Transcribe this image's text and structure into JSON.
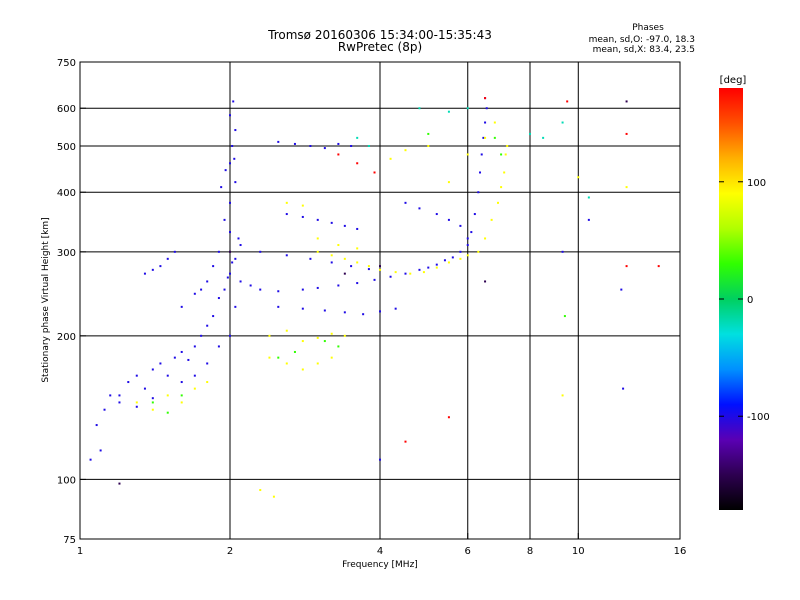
{
  "chart_data": {
    "type": "scatter",
    "title_line1": "Tromsø 20160306 15:34:00-15:35:43",
    "title_line2": "RwPretec (8p)",
    "xlabel": "Frequency [MHz]",
    "ylabel": "Stationary phase Virtual Height [km]",
    "x_scale": "log",
    "y_scale": "log",
    "xlim": [
      1,
      16
    ],
    "ylim": [
      75,
      750
    ],
    "x_ticks": [
      1,
      2,
      4,
      6,
      8,
      10,
      16
    ],
    "x_grid_lines": [
      2,
      4,
      6,
      8,
      10
    ],
    "y_ticks": [
      75,
      100,
      200,
      300,
      400,
      500,
      600,
      750
    ],
    "y_grid_lines": [
      100,
      200,
      300,
      400,
      500,
      600
    ],
    "grid": true,
    "stats": {
      "heading": "Phases",
      "line_o": "mean, sd,O: -97.0, 18.3",
      "line_x": "mean, sd,X:  83.4, 23.5"
    },
    "colorbar": {
      "label": "[deg]",
      "range": [
        -180,
        180
      ],
      "ticks": [
        100,
        0,
        -100
      ],
      "colors": [
        "#000000",
        "#2d0050",
        "#5a00b4",
        "#0010ff",
        "#0090ff",
        "#00e0e0",
        "#00d060",
        "#30ff00",
        "#b0ff00",
        "#ffff00",
        "#ffb000",
        "#ff5000",
        "#ff0000"
      ]
    },
    "series": [
      {
        "phase": -100,
        "points": [
          [
            1.05,
            110
          ],
          [
            1.1,
            115
          ],
          [
            1.08,
            130
          ],
          [
            1.12,
            140
          ],
          [
            1.15,
            150
          ],
          [
            1.2,
            145
          ],
          [
            1.25,
            160
          ],
          [
            1.3,
            165
          ],
          [
            1.35,
            155
          ],
          [
            1.4,
            170
          ],
          [
            1.45,
            175
          ],
          [
            1.5,
            165
          ],
          [
            1.55,
            180
          ],
          [
            1.6,
            185
          ],
          [
            1.65,
            178
          ],
          [
            1.7,
            190
          ],
          [
            1.75,
            200
          ],
          [
            1.8,
            210
          ],
          [
            1.85,
            220
          ],
          [
            1.9,
            240
          ],
          [
            1.95,
            250
          ],
          [
            2.0,
            270
          ],
          [
            2.05,
            290
          ],
          [
            2.1,
            310
          ],
          [
            2.0,
            330
          ],
          [
            1.95,
            350
          ],
          [
            2.0,
            380
          ],
          [
            2.05,
            420
          ],
          [
            2.0,
            460
          ],
          [
            2.02,
            500
          ],
          [
            2.05,
            540
          ],
          [
            2.0,
            580
          ],
          [
            2.03,
            620
          ],
          [
            1.9,
            300
          ],
          [
            1.85,
            280
          ],
          [
            1.8,
            260
          ],
          [
            1.75,
            250
          ],
          [
            1.7,
            245
          ],
          [
            1.6,
            230
          ],
          [
            1.55,
            300
          ],
          [
            1.5,
            290
          ],
          [
            1.45,
            280
          ],
          [
            1.4,
            275
          ],
          [
            1.35,
            270
          ],
          [
            2.1,
            260
          ],
          [
            2.2,
            255
          ],
          [
            2.3,
            250
          ],
          [
            2.5,
            248
          ],
          [
            2.8,
            250
          ],
          [
            3.0,
            252
          ],
          [
            3.3,
            255
          ],
          [
            3.6,
            258
          ],
          [
            3.9,
            262
          ],
          [
            4.2,
            266
          ],
          [
            4.5,
            270
          ],
          [
            4.8,
            275
          ],
          [
            5.0,
            278
          ],
          [
            5.2,
            282
          ],
          [
            5.4,
            288
          ],
          [
            5.6,
            292
          ],
          [
            5.8,
            300
          ],
          [
            6.0,
            310
          ],
          [
            6.1,
            330
          ],
          [
            6.2,
            360
          ],
          [
            6.3,
            400
          ],
          [
            6.35,
            440
          ],
          [
            6.4,
            480
          ],
          [
            6.45,
            520
          ],
          [
            6.5,
            560
          ],
          [
            6.55,
            600
          ],
          [
            6.5,
            630
          ],
          [
            2.5,
            510
          ],
          [
            2.7,
            505
          ],
          [
            2.9,
            500
          ],
          [
            3.1,
            495
          ],
          [
            3.3,
            505
          ],
          [
            3.5,
            500
          ],
          [
            2.6,
            360
          ],
          [
            2.8,
            355
          ],
          [
            3.0,
            350
          ],
          [
            3.2,
            345
          ],
          [
            3.4,
            340
          ],
          [
            3.6,
            335
          ],
          [
            2.5,
            230
          ],
          [
            2.8,
            228
          ],
          [
            3.1,
            226
          ],
          [
            3.4,
            224
          ],
          [
            3.7,
            222
          ],
          [
            4.0,
            225
          ],
          [
            4.3,
            228
          ],
          [
            2.3,
            300
          ],
          [
            2.6,
            295
          ],
          [
            2.9,
            290
          ],
          [
            3.2,
            285
          ],
          [
            3.5,
            280
          ],
          [
            3.8,
            276
          ],
          [
            1.2,
            150
          ],
          [
            1.3,
            142
          ],
          [
            1.4,
            148
          ],
          [
            1.6,
            160
          ],
          [
            1.7,
            165
          ],
          [
            1.8,
            175
          ],
          [
            1.9,
            190
          ],
          [
            2.0,
            200
          ],
          [
            2.05,
            230
          ],
          [
            1.98,
            265
          ],
          [
            2.02,
            285
          ],
          [
            2.08,
            320
          ],
          [
            1.92,
            410
          ],
          [
            1.96,
            445
          ],
          [
            2.04,
            470
          ],
          [
            4.5,
            380
          ],
          [
            4.8,
            370
          ],
          [
            5.2,
            360
          ],
          [
            5.5,
            350
          ],
          [
            5.8,
            340
          ],
          [
            6.0,
            320
          ],
          [
            10.5,
            350
          ],
          [
            12.2,
            250
          ],
          [
            9.3,
            300
          ],
          [
            12.3,
            155
          ],
          [
            4.0,
            110
          ]
        ]
      },
      {
        "phase": 90,
        "points": [
          [
            1.3,
            145
          ],
          [
            1.4,
            140
          ],
          [
            1.5,
            150
          ],
          [
            1.6,
            145
          ],
          [
            1.7,
            155
          ],
          [
            1.8,
            160
          ],
          [
            2.4,
            180
          ],
          [
            2.6,
            175
          ],
          [
            2.8,
            170
          ],
          [
            3.0,
            175
          ],
          [
            3.2,
            180
          ],
          [
            2.4,
            200
          ],
          [
            2.6,
            205
          ],
          [
            2.8,
            195
          ],
          [
            3.0,
            198
          ],
          [
            3.2,
            202
          ],
          [
            3.4,
            200
          ],
          [
            3.0,
            300
          ],
          [
            3.2,
            295
          ],
          [
            3.4,
            290
          ],
          [
            3.6,
            285
          ],
          [
            3.8,
            280
          ],
          [
            4.0,
            275
          ],
          [
            4.3,
            272
          ],
          [
            4.6,
            270
          ],
          [
            4.9,
            272
          ],
          [
            5.2,
            278
          ],
          [
            5.5,
            285
          ],
          [
            5.8,
            290
          ],
          [
            6.0,
            295
          ],
          [
            6.3,
            300
          ],
          [
            6.5,
            320
          ],
          [
            6.7,
            350
          ],
          [
            6.9,
            380
          ],
          [
            7.0,
            410
          ],
          [
            7.1,
            440
          ],
          [
            7.15,
            480
          ],
          [
            7.2,
            500
          ],
          [
            2.6,
            380
          ],
          [
            2.8,
            375
          ],
          [
            3.0,
            320
          ],
          [
            3.3,
            310
          ],
          [
            3.6,
            305
          ],
          [
            5.0,
            500
          ],
          [
            5.5,
            420
          ],
          [
            6.0,
            480
          ],
          [
            6.5,
            520
          ],
          [
            6.8,
            560
          ],
          [
            4.5,
            490
          ],
          [
            4.2,
            470
          ],
          [
            2.3,
            95
          ],
          [
            2.45,
            92
          ],
          [
            9.3,
            150
          ],
          [
            10.0,
            430
          ],
          [
            12.5,
            410
          ]
        ]
      },
      {
        "phase": 30,
        "points": [
          [
            1.4,
            145
          ],
          [
            1.5,
            138
          ],
          [
            1.6,
            150
          ],
          [
            2.5,
            180
          ],
          [
            2.7,
            185
          ],
          [
            3.1,
            195
          ],
          [
            3.3,
            190
          ],
          [
            9.4,
            220
          ],
          [
            7.0,
            480
          ],
          [
            6.8,
            520
          ],
          [
            5.0,
            530
          ]
        ]
      },
      {
        "phase": 180,
        "points": [
          [
            4.5,
            120
          ],
          [
            5.5,
            135
          ],
          [
            9.5,
            620
          ],
          [
            12.5,
            530
          ],
          [
            12.5,
            280
          ],
          [
            14.5,
            280
          ],
          [
            6.5,
            630
          ],
          [
            3.3,
            480
          ],
          [
            3.6,
            460
          ],
          [
            3.9,
            440
          ]
        ]
      },
      {
        "phase": -20,
        "points": [
          [
            4.8,
            600
          ],
          [
            5.5,
            590
          ],
          [
            6.0,
            600
          ],
          [
            9.3,
            560
          ],
          [
            10.5,
            390
          ],
          [
            8.0,
            530
          ],
          [
            8.5,
            520
          ],
          [
            3.6,
            520
          ],
          [
            3.8,
            500
          ]
        ]
      },
      {
        "phase": -150,
        "points": [
          [
            1.2,
            98
          ],
          [
            4.0,
            280
          ],
          [
            6.5,
            260
          ],
          [
            12.5,
            620
          ],
          [
            2.0,
            300
          ],
          [
            3.4,
            270
          ]
        ]
      }
    ]
  }
}
